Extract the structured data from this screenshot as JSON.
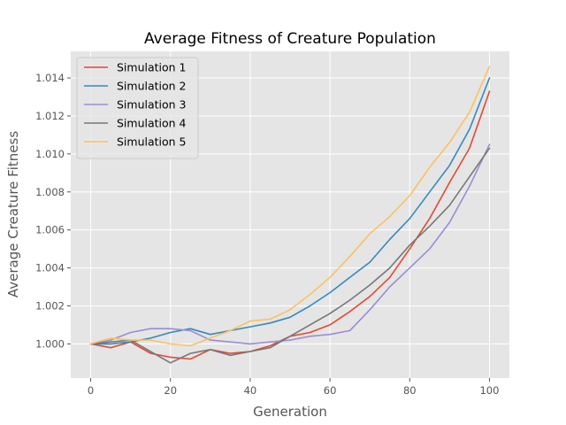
{
  "chart_data": {
    "type": "line",
    "title": "Average Fitness of Creature Population",
    "xlabel": "Generation",
    "ylabel": "Average Creature Fitness",
    "xlim": [
      -5,
      105
    ],
    "ylim": [
      0.9982,
      1.0154
    ],
    "xticks": [
      0,
      20,
      40,
      60,
      80,
      100
    ],
    "yticks": [
      1.0,
      1.002,
      1.004,
      1.006,
      1.008,
      1.01,
      1.012,
      1.014
    ],
    "ytick_labels": [
      "1.000",
      "1.002",
      "1.004",
      "1.006",
      "1.008",
      "1.010",
      "1.012",
      "1.014"
    ],
    "grid": true,
    "legend_position": "top-left",
    "style": "ggplot",
    "x": [
      0,
      5,
      10,
      15,
      20,
      25,
      30,
      35,
      40,
      45,
      50,
      55,
      60,
      65,
      70,
      75,
      80,
      85,
      90,
      95,
      100
    ],
    "series": [
      {
        "name": "Simulation 1",
        "color": "#E24A33",
        "values": [
          1.0,
          0.9998,
          1.0001,
          0.9995,
          0.9993,
          0.9992,
          0.9997,
          0.9995,
          0.9996,
          0.9999,
          1.0004,
          1.0006,
          1.001,
          1.0017,
          1.0025,
          1.0035,
          1.005,
          1.0066,
          1.0085,
          1.0103,
          1.0133
        ]
      },
      {
        "name": "Simulation 2",
        "color": "#348ABD",
        "values": [
          1.0,
          1.0,
          1.0001,
          1.0003,
          1.0006,
          1.0008,
          1.0005,
          1.0007,
          1.0009,
          1.0011,
          1.0014,
          1.002,
          1.0027,
          1.0035,
          1.0043,
          1.0055,
          1.0066,
          1.008,
          1.0094,
          1.0113,
          1.014
        ]
      },
      {
        "name": "Simulation 3",
        "color": "#988ED5",
        "values": [
          1.0,
          1.0002,
          1.0006,
          1.0008,
          1.0008,
          1.0007,
          1.0002,
          1.0001,
          1.0,
          1.0001,
          1.0002,
          1.0004,
          1.0005,
          1.0007,
          1.0018,
          1.003,
          1.004,
          1.005,
          1.0064,
          1.0083,
          1.0105
        ]
      },
      {
        "name": "Simulation 4",
        "color": "#777777",
        "values": [
          1.0,
          1.0001,
          1.0002,
          0.9996,
          0.999,
          0.9995,
          0.9997,
          0.9994,
          0.9996,
          0.9998,
          1.0004,
          1.001,
          1.0016,
          1.0023,
          1.0031,
          1.004,
          1.0052,
          1.0062,
          1.0073,
          1.0088,
          1.0103
        ]
      },
      {
        "name": "Simulation 5",
        "color": "#FBC15E",
        "values": [
          1.0,
          1.0003,
          1.0002,
          1.0002,
          1.0,
          0.9999,
          1.0003,
          1.0007,
          1.0012,
          1.0013,
          1.0018,
          1.0026,
          1.0035,
          1.0046,
          1.0058,
          1.0067,
          1.0078,
          1.0093,
          1.0106,
          1.0122,
          1.0146
        ]
      }
    ]
  }
}
